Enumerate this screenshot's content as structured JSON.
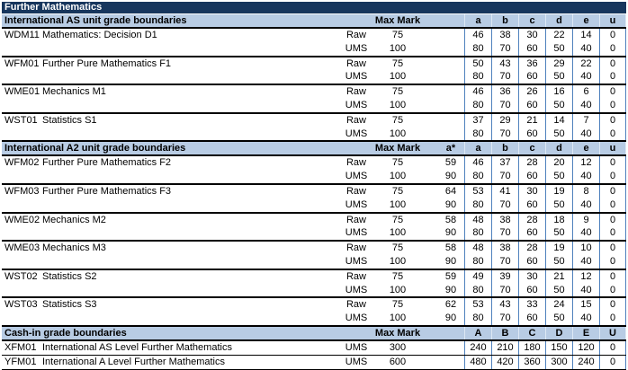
{
  "title": "Further Mathematics",
  "labels": {
    "max_mark": "Max Mark"
  },
  "colors": {
    "title_bar_bg": "#17365D",
    "title_text": "#FFFFFF",
    "section_header_bg": "#B8CCE4",
    "grade_separator": "#4F81BD",
    "border": "#000000"
  },
  "sections": [
    {
      "id": "as",
      "header": "International AS unit grade boundaries",
      "grades": [
        "",
        "a",
        "b",
        "c",
        "d",
        "e",
        "u"
      ],
      "units": [
        {
          "code": "WDM11",
          "name": "Mathematics: Decision D1",
          "rows": [
            {
              "type": "Raw",
              "max": "75",
              "values": [
                "",
                "46",
                "38",
                "30",
                "22",
                "14",
                "0"
              ]
            },
            {
              "type": "UMS",
              "max": "100",
              "values": [
                "",
                "80",
                "70",
                "60",
                "50",
                "40",
                "0"
              ]
            }
          ]
        },
        {
          "code": "WFM01",
          "name": "Further Pure Mathematics F1",
          "rows": [
            {
              "type": "Raw",
              "max": "75",
              "values": [
                "",
                "50",
                "43",
                "36",
                "29",
                "22",
                "0"
              ]
            },
            {
              "type": "UMS",
              "max": "100",
              "values": [
                "",
                "80",
                "70",
                "60",
                "50",
                "40",
                "0"
              ]
            }
          ]
        },
        {
          "code": "WME01",
          "name": "Mechanics M1",
          "rows": [
            {
              "type": "Raw",
              "max": "75",
              "values": [
                "",
                "46",
                "36",
                "26",
                "16",
                "6",
                "0"
              ]
            },
            {
              "type": "UMS",
              "max": "100",
              "values": [
                "",
                "80",
                "70",
                "60",
                "50",
                "40",
                "0"
              ]
            }
          ]
        },
        {
          "code": "WST01",
          "name": "Statistics S1",
          "rows": [
            {
              "type": "Raw",
              "max": "75",
              "values": [
                "",
                "37",
                "29",
                "21",
                "14",
                "7",
                "0"
              ]
            },
            {
              "type": "UMS",
              "max": "100",
              "values": [
                "",
                "80",
                "70",
                "60",
                "50",
                "40",
                "0"
              ]
            }
          ]
        }
      ]
    },
    {
      "id": "a2",
      "header": "International A2 unit grade boundaries",
      "grades": [
        "a*",
        "a",
        "b",
        "c",
        "d",
        "e",
        "u"
      ],
      "units": [
        {
          "code": "WFM02",
          "name": "Further Pure Mathematics F2",
          "rows": [
            {
              "type": "Raw",
              "max": "75",
              "values": [
                "59",
                "46",
                "37",
                "28",
                "20",
                "12",
                "0"
              ]
            },
            {
              "type": "UMS",
              "max": "100",
              "values": [
                "90",
                "80",
                "70",
                "60",
                "50",
                "40",
                "0"
              ]
            }
          ]
        },
        {
          "code": "WFM03",
          "name": "Further Pure Mathematics F3",
          "rows": [
            {
              "type": "Raw",
              "max": "75",
              "values": [
                "64",
                "53",
                "41",
                "30",
                "19",
                "8",
                "0"
              ]
            },
            {
              "type": "UMS",
              "max": "100",
              "values": [
                "90",
                "80",
                "70",
                "60",
                "50",
                "40",
                "0"
              ]
            }
          ]
        },
        {
          "code": "WME02",
          "name": "Mechanics M2",
          "rows": [
            {
              "type": "Raw",
              "max": "75",
              "values": [
                "58",
                "48",
                "38",
                "28",
                "18",
                "9",
                "0"
              ]
            },
            {
              "type": "UMS",
              "max": "100",
              "values": [
                "90",
                "80",
                "70",
                "60",
                "50",
                "40",
                "0"
              ]
            }
          ]
        },
        {
          "code": "WME03",
          "name": "Mechanics M3",
          "rows": [
            {
              "type": "Raw",
              "max": "75",
              "values": [
                "58",
                "48",
                "38",
                "28",
                "19",
                "10",
                "0"
              ]
            },
            {
              "type": "UMS",
              "max": "100",
              "values": [
                "90",
                "80",
                "70",
                "60",
                "50",
                "40",
                "0"
              ]
            }
          ]
        },
        {
          "code": "WST02",
          "name": "Statistics S2",
          "rows": [
            {
              "type": "Raw",
              "max": "75",
              "values": [
                "59",
                "49",
                "39",
                "30",
                "21",
                "12",
                "0"
              ]
            },
            {
              "type": "UMS",
              "max": "100",
              "values": [
                "90",
                "80",
                "70",
                "60",
                "50",
                "40",
                "0"
              ]
            }
          ]
        },
        {
          "code": "WST03",
          "name": "Statistics S3",
          "rows": [
            {
              "type": "Raw",
              "max": "75",
              "values": [
                "62",
                "53",
                "43",
                "33",
                "24",
                "15",
                "0"
              ]
            },
            {
              "type": "UMS",
              "max": "100",
              "values": [
                "90",
                "80",
                "70",
                "60",
                "50",
                "40",
                "0"
              ]
            }
          ]
        }
      ]
    },
    {
      "id": "cashin",
      "header": "Cash-in grade boundaries",
      "grades": [
        "",
        "A",
        "B",
        "C",
        "D",
        "E",
        "U"
      ],
      "units": [
        {
          "code": "XFM01",
          "name": "International AS Level Further Mathematics",
          "rows": [
            {
              "type": "UMS",
              "max": "300",
              "values": [
                "",
                "240",
                "210",
                "180",
                "150",
                "120",
                "0"
              ]
            }
          ]
        },
        {
          "code": "YFM01",
          "name": "International A Level Further Mathematics",
          "rows": [
            {
              "type": "UMS",
              "max": "600",
              "values": [
                "",
                "480",
                "420",
                "360",
                "300",
                "240",
                "0"
              ]
            }
          ]
        }
      ]
    }
  ]
}
